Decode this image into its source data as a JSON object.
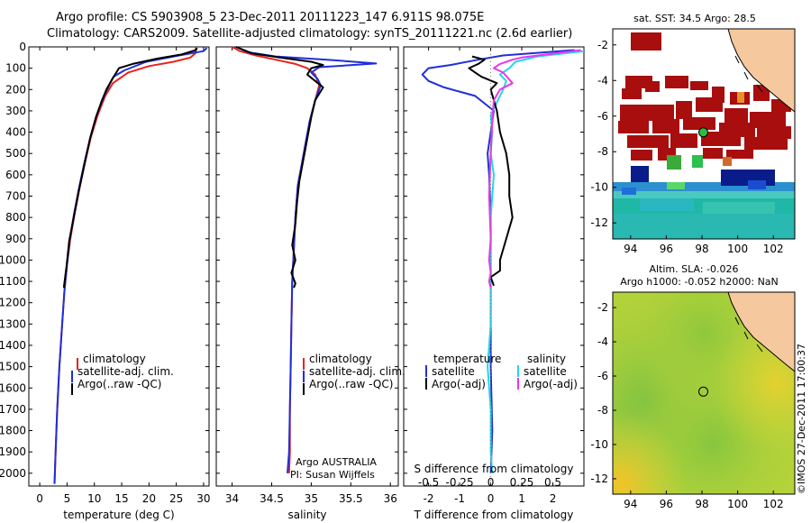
{
  "header": {
    "title_line1": "Argo profile: CS 5903908_5 23-Dec-2011 20111223_147 6.911S 98.075E",
    "title_line2": "Climatology: CARS2009. Satellite-adjusted climatology: synTS_20111221.nc (2.6d earlier)"
  },
  "watermark": "©IMOS 27-Dec-2011 17:00:37",
  "colors": {
    "climatology": "#e8231c",
    "satellite": "#1f2fd9",
    "argo": "#000000",
    "sat_salinity": "#22d7e6",
    "argo_salinity": "#ee33ee",
    "land": "#f5c89e",
    "sst_hot": "#a80e0e"
  },
  "chart_data": [
    {
      "type": "line",
      "title": "",
      "xlabel": "temperature (deg C)",
      "ylabel": "",
      "xlim": [
        -2,
        31
      ],
      "ylim": [
        2060,
        0
      ],
      "xticks": [
        0,
        5,
        10,
        15,
        20,
        25,
        30
      ],
      "yticks": [
        0,
        100,
        200,
        300,
        400,
        500,
        600,
        700,
        800,
        900,
        1000,
        1100,
        1200,
        1300,
        1400,
        1500,
        1600,
        1700,
        1800,
        1900,
        2000
      ],
      "series": [
        {
          "name": "climatology",
          "color": "#e8231c",
          "points": [
            [
              28.6,
              0
            ],
            [
              28.5,
              30
            ],
            [
              27.6,
              50
            ],
            [
              24.5,
              70
            ],
            [
              20.0,
              90
            ],
            [
              16.2,
              120
            ],
            [
              13.4,
              170
            ],
            [
              12.0,
              230
            ],
            [
              10.6,
              320
            ],
            [
              9.4,
              420
            ],
            [
              8.3,
              540
            ],
            [
              7.3,
              660
            ],
            [
              6.4,
              780
            ],
            [
              5.6,
              900
            ],
            [
              5.0,
              1020
            ],
            [
              4.5,
              1150
            ],
            [
              4.1,
              1300
            ],
            [
              3.6,
              1500
            ],
            [
              3.2,
              1700
            ],
            [
              2.9,
              1900
            ],
            [
              2.7,
              2050
            ]
          ]
        },
        {
          "name": "satellite-adj. clim.",
          "color": "#1f2fd9",
          "points": [
            [
              30.6,
              5
            ],
            [
              30.0,
              20
            ],
            [
              25.5,
              40
            ],
            [
              19.5,
              70
            ],
            [
              15.5,
              110
            ],
            [
              13.5,
              140
            ],
            [
              12.7,
              180
            ],
            [
              11.8,
              230
            ],
            [
              10.4,
              320
            ],
            [
              9.3,
              420
            ],
            [
              8.2,
              540
            ],
            [
              7.2,
              660
            ],
            [
              6.3,
              780
            ],
            [
              5.5,
              900
            ],
            [
              5.0,
              1020
            ],
            [
              4.5,
              1150
            ],
            [
              4.1,
              1300
            ],
            [
              3.6,
              1500
            ],
            [
              3.2,
              1700
            ],
            [
              2.9,
              1900
            ],
            [
              2.7,
              2050
            ]
          ]
        },
        {
          "name": "Argo(..raw -QC)",
          "color": "#000000",
          "points": [
            [
              28.8,
              5
            ],
            [
              28.6,
              15
            ],
            [
              26.0,
              35
            ],
            [
              21.5,
              55
            ],
            [
              17.0,
              80
            ],
            [
              14.5,
              100
            ],
            [
              13.3,
              150
            ],
            [
              12.2,
              200
            ],
            [
              11.4,
              250
            ],
            [
              10.3,
              330
            ],
            [
              9.2,
              430
            ],
            [
              8.2,
              550
            ],
            [
              7.1,
              680
            ],
            [
              6.3,
              790
            ],
            [
              5.4,
              910
            ],
            [
              4.9,
              1030
            ],
            [
              4.4,
              1130
            ]
          ]
        }
      ],
      "legend": {
        "entries": [
          "climatology",
          "satellite-adj. clim.",
          "Argo(..raw -QC)"
        ],
        "location": "lower-middle"
      }
    },
    {
      "type": "line",
      "title": "",
      "xlabel": "salinity",
      "ylabel": "",
      "xlim": [
        33.8,
        36.1
      ],
      "ylim": [
        2060,
        0
      ],
      "xticks": [
        34,
        34.5,
        35,
        35.5,
        36
      ],
      "series": [
        {
          "name": "climatology",
          "color": "#e8231c",
          "points": [
            [
              34.0,
              0
            ],
            [
              34.1,
              20
            ],
            [
              34.3,
              40
            ],
            [
              34.55,
              60
            ],
            [
              34.8,
              80
            ],
            [
              34.95,
              100
            ],
            [
              35.05,
              130
            ],
            [
              35.1,
              180
            ],
            [
              35.05,
              250
            ],
            [
              34.98,
              350
            ],
            [
              34.93,
              450
            ],
            [
              34.88,
              550
            ],
            [
              34.83,
              650
            ],
            [
              34.8,
              800
            ],
            [
              34.78,
              950
            ],
            [
              34.76,
              1100
            ],
            [
              34.75,
              1300
            ],
            [
              34.74,
              1500
            ],
            [
              34.73,
              1700
            ],
            [
              34.73,
              1900
            ],
            [
              34.72,
              2000
            ]
          ]
        },
        {
          "name": "satellite-adj. clim.",
          "color": "#1f2fd9",
          "points": [
            [
              34.05,
              0
            ],
            [
              34.2,
              25
            ],
            [
              34.55,
              45
            ],
            [
              35.2,
              60
            ],
            [
              35.82,
              78
            ],
            [
              35.1,
              95
            ],
            [
              35.0,
              120
            ],
            [
              35.08,
              150
            ],
            [
              35.12,
              180
            ],
            [
              35.05,
              250
            ],
            [
              34.98,
              350
            ],
            [
              34.93,
              450
            ],
            [
              34.88,
              550
            ],
            [
              34.83,
              650
            ],
            [
              34.8,
              800
            ],
            [
              34.78,
              950
            ],
            [
              34.76,
              1100
            ],
            [
              34.75,
              1300
            ],
            [
              34.74,
              1500
            ],
            [
              34.73,
              1700
            ],
            [
              34.72,
              1900
            ],
            [
              34.7,
              2000
            ]
          ]
        },
        {
          "name": "Argo(..raw -QC)",
          "color": "#000000",
          "points": [
            [
              34.05,
              0
            ],
            [
              34.25,
              30
            ],
            [
              34.6,
              50
            ],
            [
              35.0,
              70
            ],
            [
              35.15,
              85
            ],
            [
              35.0,
              100
            ],
            [
              34.95,
              130
            ],
            [
              35.05,
              160
            ],
            [
              35.15,
              190
            ],
            [
              35.05,
              250
            ],
            [
              35.0,
              330
            ],
            [
              34.95,
              430
            ],
            [
              34.9,
              530
            ],
            [
              34.85,
              630
            ],
            [
              34.82,
              730
            ],
            [
              34.8,
              830
            ],
            [
              34.76,
              930
            ],
            [
              34.8,
              1000
            ],
            [
              34.75,
              1060
            ],
            [
              34.8,
              1110
            ],
            [
              34.78,
              1130
            ]
          ]
        }
      ],
      "legend": {
        "entries": [
          "climatology",
          "satellite-adj. clim.",
          "Argo(..raw -QC)"
        ],
        "location": "lower-middle"
      },
      "annotation_line1": "Argo AUSTRALIA",
      "annotation_line2": "PI: Susan Wijffels"
    },
    {
      "type": "line",
      "title": "",
      "xlabel": "T difference from climatology",
      "xlabel_top": "S difference from climatology",
      "ylabel": "",
      "xlim": [
        -2.8,
        3.0
      ],
      "ylim": [
        2060,
        0
      ],
      "xticks": [
        -2,
        -1,
        0,
        1,
        2
      ],
      "s_ticks": [
        "-0.5",
        "-0.25",
        "0",
        "0.25",
        "0.5"
      ],
      "series": [
        {
          "name": "T satellite",
          "color": "#1f2fd9",
          "points": [
            [
              2.7,
              15
            ],
            [
              0.4,
              40
            ],
            [
              -0.4,
              60
            ],
            [
              -1.3,
              85
            ],
            [
              -2.0,
              100
            ],
            [
              -2.2,
              130
            ],
            [
              -2.0,
              160
            ],
            [
              -1.5,
              190
            ],
            [
              -0.5,
              230
            ],
            [
              0.1,
              300
            ],
            [
              0.0,
              400
            ],
            [
              -0.1,
              500
            ],
            [
              -0.05,
              600
            ],
            [
              0.0,
              800
            ],
            [
              0.0,
              1000
            ],
            [
              0.0,
              1200
            ],
            [
              0.0,
              1500
            ],
            [
              0.05,
              1800
            ],
            [
              0.0,
              2000
            ]
          ]
        },
        {
          "name": "S satellite",
          "color": "#22d7e6",
          "points": [
            [
              3.0,
              20
            ],
            [
              1.5,
              45
            ],
            [
              0.8,
              70
            ],
            [
              0.6,
              100
            ],
            [
              0.3,
              130
            ],
            [
              0.5,
              160
            ],
            [
              0.4,
              200
            ],
            [
              0.2,
              260
            ],
            [
              0.0,
              320
            ],
            [
              0.05,
              400
            ],
            [
              0.0,
              500
            ],
            [
              0.1,
              600
            ],
            [
              0.0,
              800
            ],
            [
              0.0,
              1000
            ],
            [
              0.0,
              1100
            ],
            [
              0.0,
              1300
            ],
            [
              -0.1,
              1500
            ],
            [
              0.0,
              1700
            ],
            [
              0.0,
              1900
            ],
            [
              0.05,
              2000
            ]
          ]
        },
        {
          "name": "T Argo(-adj)",
          "color": "#000000",
          "points": [
            [
              -0.6,
              45
            ],
            [
              -0.2,
              60
            ],
            [
              -0.4,
              80
            ],
            [
              -0.7,
              100
            ],
            [
              -0.5,
              120
            ],
            [
              -0.3,
              140
            ],
            [
              0.2,
              170
            ],
            [
              0.0,
              200
            ],
            [
              0.1,
              250
            ],
            [
              0.2,
              300
            ],
            [
              0.3,
              400
            ],
            [
              0.5,
              500
            ],
            [
              0.6,
              600
            ],
            [
              0.6,
              700
            ],
            [
              0.7,
              800
            ],
            [
              0.5,
              900
            ],
            [
              0.3,
              1000
            ],
            [
              0.3,
              1050
            ],
            [
              0.0,
              1080
            ],
            [
              0.1,
              1120
            ]
          ]
        },
        {
          "name": "S Argo(-adj)",
          "color": "#ee33ee",
          "points": [
            [
              2.9,
              15
            ],
            [
              1.0,
              50
            ],
            [
              0.7,
              60
            ],
            [
              0.3,
              80
            ],
            [
              0.1,
              100
            ],
            [
              0.4,
              120
            ],
            [
              0.7,
              170
            ],
            [
              0.3,
              200
            ],
            [
              0.1,
              250
            ],
            [
              0.05,
              350
            ],
            [
              0.0,
              500
            ],
            [
              -0.05,
              700
            ],
            [
              0.0,
              900
            ],
            [
              -0.05,
              1000
            ],
            [
              0.0,
              1060
            ],
            [
              -0.05,
              1100
            ],
            [
              0.0,
              1130
            ]
          ]
        }
      ],
      "legend_col1_title": "temperature",
      "legend_col2_title": "salinity",
      "legend_satellite": "satellite",
      "legend_argo": "Argo(-adj)"
    },
    {
      "type": "heatmap",
      "title": "sat. SST: 34.5  Argo: 28.5",
      "xlim": [
        93,
        103.2
      ],
      "ylim": [
        -12.9,
        -1.1
      ],
      "xticks": [
        94,
        96,
        98,
        100,
        102
      ],
      "yticks": [
        -2,
        -4,
        -6,
        -8,
        -10,
        -12
      ],
      "marker": {
        "lon": 98.075,
        "lat": -6.911
      }
    },
    {
      "type": "heatmap",
      "title_line1": "Altim. SLA: -0.026",
      "title_line2": "Argo h1000: -0.052 h2000: NaN",
      "xlim": [
        93,
        103.2
      ],
      "ylim": [
        -12.9,
        -1.1
      ],
      "xticks": [
        94,
        96,
        98,
        100,
        102
      ],
      "yticks": [
        -2,
        -4,
        -6,
        -8,
        -10,
        -12
      ],
      "marker": {
        "lon": 98.075,
        "lat": -6.911
      }
    }
  ]
}
